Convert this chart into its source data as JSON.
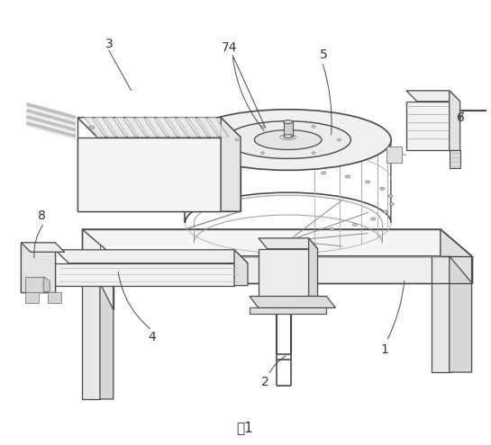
{
  "caption": "图1",
  "bg": "#ffffff",
  "lc": "#4a4a4a",
  "llc": "#aaaaaa",
  "figsize": [
    5.45,
    4.95
  ],
  "dpi": 100
}
